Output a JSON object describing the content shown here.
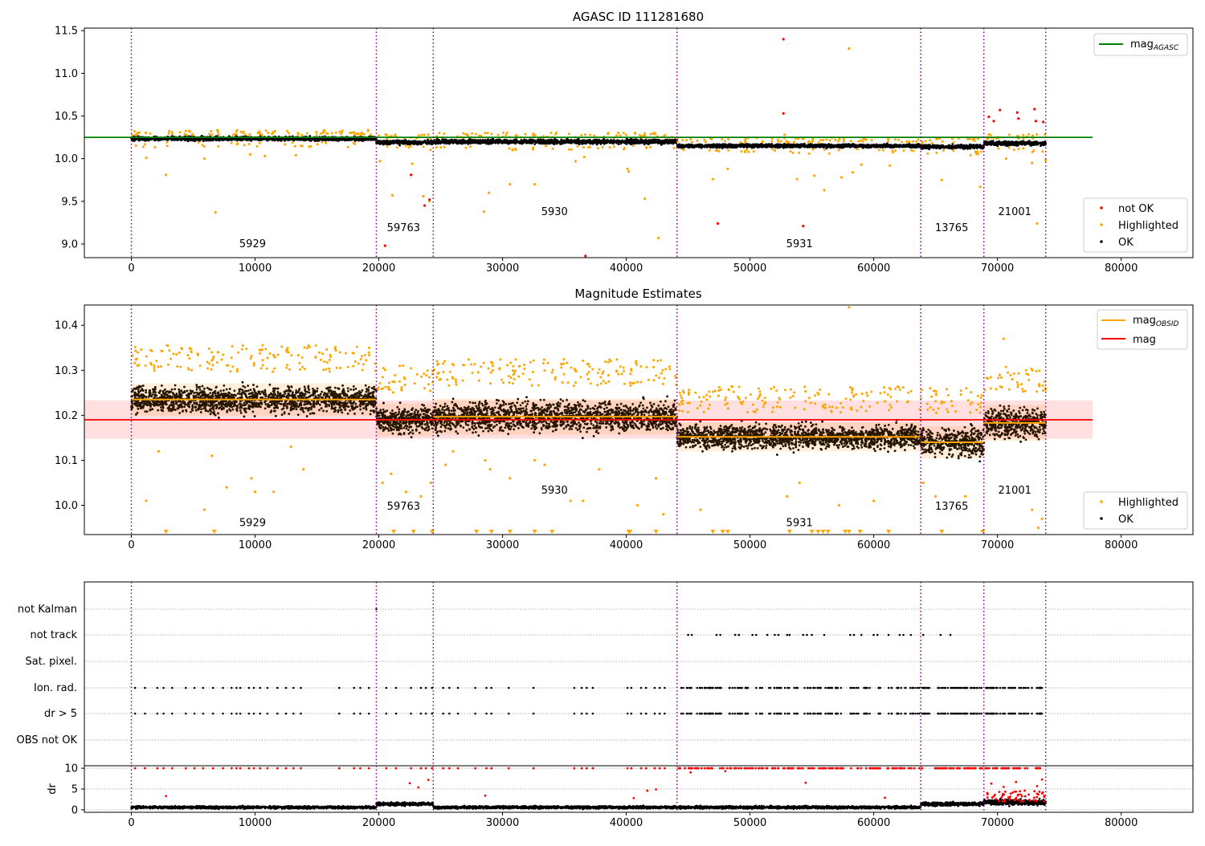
{
  "chart_data": [
    {
      "id": "top",
      "type": "scatter",
      "title": "AGASC ID 111281680",
      "xlim": [
        -3800,
        85800
      ],
      "ylim": [
        8.84,
        11.53
      ],
      "xticks": [
        0,
        10000,
        20000,
        30000,
        40000,
        50000,
        60000,
        70000,
        80000
      ],
      "yticks": [
        9.0,
        9.5,
        10.0,
        10.5,
        11.0,
        11.5
      ],
      "ytick_labels": [
        "9.0",
        "9.5",
        "10.0",
        "10.5",
        "11.0",
        "11.5"
      ],
      "vlines": [
        0,
        19800,
        24400,
        44100,
        63800,
        68900,
        73900
      ],
      "obsids": [
        {
          "label": "5929",
          "x": 9800,
          "y": 8.96
        },
        {
          "label": "59763",
          "x": 22000,
          "y": 9.15
        },
        {
          "label": "5930",
          "x": 34200,
          "y": 9.34
        },
        {
          "label": "5931",
          "x": 54000,
          "y": 8.96
        },
        {
          "label": "13765",
          "x": 66300,
          "y": 9.15
        },
        {
          "label": "21001",
          "x": 71400,
          "y": 9.34
        }
      ],
      "line": {
        "name": "mag_AGASC",
        "y": 10.25,
        "x": [
          -3800,
          77700
        ],
        "color": "#008000"
      },
      "legend_top": {
        "label_main": "mag",
        "label_sub": "AGASC"
      },
      "legend_bottom": [
        {
          "label": "not OK",
          "color": "#ff0000"
        },
        {
          "label": "Highlighted",
          "color": "#ffa500"
        },
        {
          "label": "OK",
          "color": "#000000"
        }
      ],
      "segments": [
        {
          "x0": 0,
          "x1": 19800,
          "center": 10.235,
          "spread": 0.045,
          "count": 1400
        },
        {
          "x0": 19800,
          "x1": 24400,
          "center": 10.19,
          "spread": 0.045,
          "count": 300
        },
        {
          "x0": 24400,
          "x1": 44100,
          "center": 10.2,
          "spread": 0.05,
          "count": 1300
        },
        {
          "x0": 44100,
          "x1": 63800,
          "center": 10.15,
          "spread": 0.04,
          "count": 1300
        },
        {
          "x0": 63800,
          "x1": 68900,
          "center": 10.14,
          "spread": 0.045,
          "count": 350
        },
        {
          "x0": 68900,
          "x1": 73900,
          "center": 10.18,
          "spread": 0.05,
          "count": 350
        }
      ],
      "highlighted_points": [
        [
          6800,
          9.37
        ],
        [
          2800,
          9.81
        ],
        [
          1200,
          10.01
        ],
        [
          5900,
          10.0
        ],
        [
          9600,
          10.05
        ],
        [
          10800,
          10.03
        ],
        [
          13300,
          10.04
        ],
        [
          20100,
          9.97
        ],
        [
          21100,
          9.57
        ],
        [
          22700,
          9.94
        ],
        [
          23600,
          9.56
        ],
        [
          24100,
          9.5
        ],
        [
          28500,
          9.38
        ],
        [
          28900,
          9.6
        ],
        [
          30600,
          9.7
        ],
        [
          32600,
          9.7
        ],
        [
          35900,
          9.97
        ],
        [
          36600,
          10.02
        ],
        [
          40100,
          9.88
        ],
        [
          40200,
          9.85
        ],
        [
          41500,
          9.53
        ],
        [
          42600,
          9.07
        ],
        [
          47000,
          9.76
        ],
        [
          48200,
          9.88
        ],
        [
          52800,
          10.28
        ],
        [
          53800,
          9.76
        ],
        [
          55200,
          9.8
        ],
        [
          56000,
          9.63
        ],
        [
          57400,
          9.78
        ],
        [
          58000,
          11.29
        ],
        [
          58300,
          9.84
        ],
        [
          59000,
          9.93
        ],
        [
          61300,
          9.92
        ],
        [
          65500,
          9.75
        ],
        [
          68600,
          9.67
        ],
        [
          70700,
          10.0
        ],
        [
          72800,
          9.95
        ],
        [
          73200,
          9.24
        ],
        [
          73900,
          9.98
        ]
      ],
      "notok_points": [
        [
          52700,
          11.4
        ],
        [
          52700,
          10.53
        ],
        [
          20500,
          8.98
        ],
        [
          22600,
          9.81
        ],
        [
          23700,
          9.45
        ],
        [
          24100,
          9.52
        ],
        [
          36700,
          8.86
        ],
        [
          47400,
          9.24
        ],
        [
          54300,
          9.21
        ],
        [
          69300,
          10.49
        ],
        [
          69700,
          10.44
        ],
        [
          70200,
          10.57
        ],
        [
          71600,
          10.54
        ],
        [
          71700,
          10.47
        ],
        [
          73000,
          10.58
        ],
        [
          73100,
          10.44
        ],
        [
          73700,
          10.43
        ]
      ]
    },
    {
      "id": "middle",
      "type": "scatter",
      "title": "Magnitude Estimates",
      "xlim": [
        -3800,
        85800
      ],
      "ylim": [
        9.935,
        10.445
      ],
      "xticks": [
        0,
        10000,
        20000,
        30000,
        40000,
        50000,
        60000,
        70000,
        80000
      ],
      "yticks": [
        10.0,
        10.1,
        10.2,
        10.3,
        10.4
      ],
      "ytick_labels": [
        "10.0",
        "10.1",
        "10.2",
        "10.3",
        "10.4"
      ],
      "vlines": [
        0,
        19800,
        24400,
        44100,
        63800,
        68900,
        73900
      ],
      "obsids": [
        {
          "label": "5929",
          "x": 9800,
          "y": 9.954
        },
        {
          "label": "59763",
          "x": 22000,
          "y": 9.99
        },
        {
          "label": "5930",
          "x": 34200,
          "y": 10.026
        },
        {
          "label": "5931",
          "x": 54000,
          "y": 9.954
        },
        {
          "label": "13765",
          "x": 66300,
          "y": 9.99
        },
        {
          "label": "21001",
          "x": 71400,
          "y": 10.026
        }
      ],
      "mag_line": {
        "name": "mag",
        "y": 10.19,
        "band": [
          10.148,
          10.233
        ],
        "x": [
          -3800,
          77700
        ],
        "color": "#ff0000"
      },
      "legend_top": [
        {
          "label_main": "mag",
          "label_sub": "OBSID",
          "color": "#ffa500"
        },
        {
          "label_main": "mag",
          "label_sub": "",
          "color": "#ff0000"
        }
      ],
      "legend_bottom": [
        {
          "label": "Highlighted",
          "color": "#ffa500"
        },
        {
          "label": "OK",
          "color": "#000000"
        }
      ],
      "segments": [
        {
          "x0": 0,
          "x1": 19800,
          "mag_obsid": 10.235,
          "spread": 0.045,
          "count": 1600
        },
        {
          "x0": 19800,
          "x1": 24400,
          "mag_obsid": 10.19,
          "spread": 0.045,
          "count": 400
        },
        {
          "x0": 24400,
          "x1": 44100,
          "mag_obsid": 10.197,
          "spread": 0.05,
          "count": 1600
        },
        {
          "x0": 44100,
          "x1": 63800,
          "mag_obsid": 10.152,
          "spread": 0.04,
          "count": 1600
        },
        {
          "x0": 63800,
          "x1": 68900,
          "mag_obsid": 10.14,
          "spread": 0.045,
          "count": 420
        },
        {
          "x0": 68900,
          "x1": 73900,
          "mag_obsid": 10.183,
          "spread": 0.05,
          "count": 420
        }
      ],
      "highlighted_points": [
        [
          1200,
          10.01
        ],
        [
          2200,
          10.12
        ],
        [
          5900,
          9.99
        ],
        [
          6500,
          10.11
        ],
        [
          7700,
          10.04
        ],
        [
          9700,
          10.06
        ],
        [
          10000,
          10.03
        ],
        [
          11500,
          10.03
        ],
        [
          12900,
          10.13
        ],
        [
          13900,
          10.08
        ],
        [
          20300,
          10.05
        ],
        [
          21000,
          10.07
        ],
        [
          22200,
          10.03
        ],
        [
          23400,
          10.02
        ],
        [
          24200,
          10.05
        ],
        [
          25400,
          10.09
        ],
        [
          26000,
          10.12
        ],
        [
          28600,
          10.1
        ],
        [
          29000,
          10.08
        ],
        [
          30600,
          10.06
        ],
        [
          32600,
          10.1
        ],
        [
          33400,
          10.09
        ],
        [
          35500,
          10.01
        ],
        [
          36500,
          10.01
        ],
        [
          37800,
          10.08
        ],
        [
          40900,
          10.0
        ],
        [
          42400,
          10.06
        ],
        [
          43000,
          9.98
        ],
        [
          46000,
          9.99
        ],
        [
          53000,
          10.02
        ],
        [
          54000,
          10.05
        ],
        [
          57200,
          10.0
        ],
        [
          58000,
          10.44
        ],
        [
          60000,
          10.01
        ],
        [
          64000,
          10.05
        ],
        [
          65000,
          10.02
        ],
        [
          67400,
          10.02
        ],
        [
          70500,
          10.37
        ],
        [
          71200,
          10.28
        ],
        [
          72800,
          9.99
        ],
        [
          73300,
          9.95
        ],
        [
          73600,
          9.97
        ]
      ],
      "below_axis_markers": [
        2800,
        6700,
        21200,
        22800,
        24300,
        27900,
        29100,
        30600,
        32600,
        34000,
        40200,
        40300,
        42400,
        47000,
        47800,
        48200,
        53200,
        55000,
        55500,
        55900,
        56300,
        57700,
        58000,
        58900,
        61200,
        65500,
        68800
      ]
    },
    {
      "id": "flags",
      "type": "scatter",
      "ylabels": [
        "not Kalman",
        "not track",
        "Sat. pixel.",
        "Ion. rad.",
        "dr > 5",
        "OBS not OK"
      ],
      "xlim": [
        -3800,
        85800
      ],
      "vlines": [
        0,
        19800,
        24400,
        44100,
        63800,
        68900,
        73900
      ],
      "not_kalman_points": [
        19800
      ],
      "not_track_points": [
        45000,
        45300,
        47300,
        47600,
        48800,
        49100,
        50200,
        50500,
        51400,
        52000,
        52300,
        53000,
        53200,
        54300,
        54600,
        55000,
        56000,
        58100,
        58400,
        59000,
        60000,
        60300,
        61200,
        62100,
        62400,
        63000,
        64000,
        65400,
        66200
      ],
      "ion_points": [
        300,
        1100,
        2100,
        2600,
        3300,
        4400,
        5100,
        5800,
        6600,
        7400,
        8100,
        8500,
        8800,
        9500,
        9900,
        10400,
        11000,
        11800,
        12500,
        13100,
        13700,
        16800,
        18000,
        18500,
        19200,
        20600,
        21400,
        22600,
        23400,
        23800,
        24300,
        25200,
        25700,
        26400,
        27800,
        28700,
        29100,
        30500,
        32500,
        35800,
        36400,
        36800,
        37300,
        40100,
        40400,
        41200,
        41600,
        42300,
        42700,
        43100
      ],
      "dr5_points": [
        300,
        1100,
        2100,
        2600,
        3300,
        4400,
        5100,
        5800,
        6600,
        7400,
        8100,
        8500,
        8800,
        9500,
        9900,
        10400,
        11000,
        11800,
        12500,
        13100,
        13700,
        16800,
        18000,
        18500,
        19200,
        20600,
        21400,
        22600,
        23400,
        23800,
        24300,
        25200,
        25700,
        26400,
        27800,
        28700,
        29100,
        30500,
        32500,
        35800,
        36400,
        36800,
        37300,
        40100,
        40400,
        41200,
        41600,
        42300,
        42700,
        43100
      ],
      "dense_ranges": [
        [
          44200,
          63800,
          130
        ],
        [
          63900,
          68900,
          45
        ],
        [
          69000,
          73600,
          45
        ]
      ]
    },
    {
      "id": "dr",
      "type": "scatter",
      "ylabel": "dr",
      "xlim": [
        -3800,
        85800
      ],
      "ylim": [
        -0.6,
        10.6
      ],
      "xticks": [
        0,
        10000,
        20000,
        30000,
        40000,
        50000,
        60000,
        70000,
        80000
      ],
      "yticks": [
        0,
        5,
        10
      ],
      "ytick_labels": [
        "0",
        "5",
        "10"
      ],
      "vlines": [
        0,
        19800,
        24400,
        44100,
        63800,
        68900,
        73900
      ],
      "segments": [
        {
          "x0": 0,
          "x1": 19800,
          "center": 0.6,
          "spread": 0.35,
          "count": 1300
        },
        {
          "x0": 19800,
          "x1": 24400,
          "center": 1.4,
          "spread": 0.45,
          "count": 350
        },
        {
          "x0": 24400,
          "x1": 44100,
          "center": 0.6,
          "spread": 0.35,
          "count": 1300
        },
        {
          "x0": 44100,
          "x1": 63800,
          "center": 0.6,
          "spread": 0.35,
          "count": 1300
        },
        {
          "x0": 63800,
          "x1": 68900,
          "center": 1.4,
          "spread": 0.5,
          "count": 400
        },
        {
          "x0": 68900,
          "x1": 73900,
          "center": 1.8,
          "spread": 0.7,
          "count": 450
        }
      ],
      "red_points_at_10": [
        300,
        1100,
        2100,
        2600,
        3300,
        4400,
        5100,
        5800,
        6600,
        7400,
        8100,
        8500,
        8800,
        9500,
        9900,
        10400,
        11000,
        11800,
        12500,
        13100,
        13700,
        16800,
        18000,
        18500,
        19200,
        20600,
        21400,
        22600,
        23400,
        23800,
        24300,
        25200,
        25700,
        26400,
        27800,
        28700,
        29100,
        30500,
        32500,
        35800,
        36400,
        36800,
        37300,
        40100,
        40400,
        41200,
        41600,
        42300,
        42700,
        43100
      ],
      "red_points_other": [
        [
          2800,
          3.3
        ],
        [
          22500,
          6.4
        ],
        [
          23200,
          5.4
        ],
        [
          24000,
          7.2
        ],
        [
          28600,
          3.4
        ],
        [
          40600,
          2.8
        ],
        [
          41700,
          4.6
        ],
        [
          42400,
          4.9
        ],
        [
          45200,
          9.0
        ],
        [
          48000,
          9.3
        ],
        [
          54500,
          6.5
        ],
        [
          60900,
          2.9
        ],
        [
          69500,
          6.3
        ],
        [
          70500,
          5.5
        ],
        [
          71500,
          6.7
        ],
        [
          72200,
          4.6
        ],
        [
          73200,
          5.7
        ],
        [
          73600,
          7.3
        ]
      ]
    }
  ]
}
